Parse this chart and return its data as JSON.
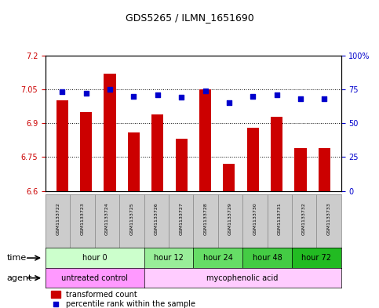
{
  "title": "GDS5265 / ILMN_1651690",
  "samples": [
    "GSM1133722",
    "GSM1133723",
    "GSM1133724",
    "GSM1133725",
    "GSM1133726",
    "GSM1133727",
    "GSM1133728",
    "GSM1133729",
    "GSM1133730",
    "GSM1133731",
    "GSM1133732",
    "GSM1133733"
  ],
  "bar_values": [
    7.0,
    6.95,
    7.12,
    6.86,
    6.94,
    6.83,
    7.05,
    6.72,
    6.88,
    6.93,
    6.79,
    6.79
  ],
  "percentile_values": [
    73,
    72,
    75,
    70,
    71,
    69,
    74,
    65,
    70,
    71,
    68,
    68
  ],
  "bar_color": "#cc0000",
  "percentile_color": "#0000cc",
  "ylim": [
    6.6,
    7.2
  ],
  "yticks": [
    6.6,
    6.75,
    6.9,
    7.05,
    7.2
  ],
  "ytick_labels": [
    "6.6",
    "6.75",
    "6.9",
    "7.05",
    "7.2"
  ],
  "y2lim": [
    0,
    100
  ],
  "y2ticks": [
    0,
    25,
    50,
    75,
    100
  ],
  "y2tick_labels": [
    "0",
    "25",
    "50",
    "75",
    "100%"
  ],
  "ylabel_color": "#cc0000",
  "y2label_color": "#0000cc",
  "grid_color": "black",
  "grid_style": "dotted",
  "time_groups": [
    {
      "label": "hour 0",
      "start": 0,
      "end": 3,
      "color": "#ccffcc"
    },
    {
      "label": "hour 12",
      "start": 4,
      "end": 5,
      "color": "#99ee99"
    },
    {
      "label": "hour 24",
      "start": 6,
      "end": 7,
      "color": "#66dd66"
    },
    {
      "label": "hour 48",
      "start": 8,
      "end": 9,
      "color": "#44cc44"
    },
    {
      "label": "hour 72",
      "start": 10,
      "end": 11,
      "color": "#22bb22"
    }
  ],
  "agent_groups": [
    {
      "label": "untreated control",
      "start": 0,
      "end": 3,
      "color": "#ff99ff"
    },
    {
      "label": "mycophenolic acid",
      "start": 4,
      "end": 11,
      "color": "#ffccff"
    }
  ],
  "legend_bar_label": "transformed count",
  "legend_pct_label": "percentile rank within the sample",
  "time_label": "time",
  "agent_label": "agent",
  "bar_width": 0.5,
  "sample_bg_color": "#cccccc"
}
